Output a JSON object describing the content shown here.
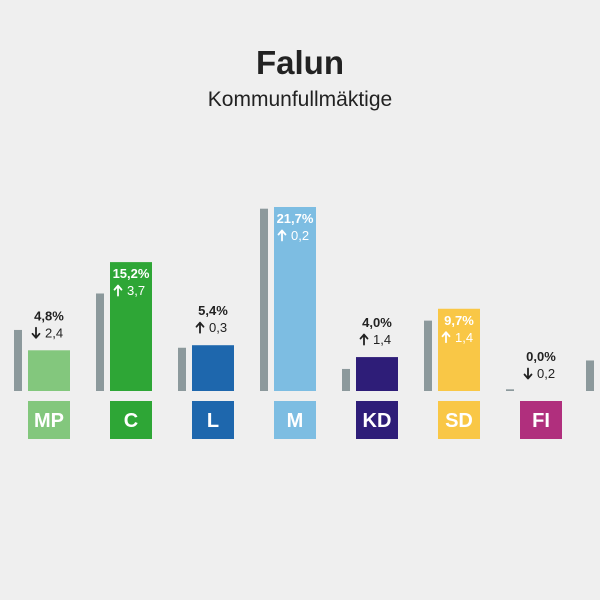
{
  "header": {
    "title": "Falun",
    "subtitle": "Kommunfullmäktige"
  },
  "chart_data": {
    "type": "bar",
    "title": "Falun",
    "subtitle": "Kommunfullmäktige",
    "categories": [
      "MP",
      "C",
      "L",
      "M",
      "KD",
      "SD",
      "FI"
    ],
    "series": [
      {
        "values": [
          4.8,
          15.2,
          5.4,
          21.7,
          4.0,
          9.7,
          0.0
        ]
      },
      {
        "values": [
          7.2,
          11.5,
          5.1,
          21.5,
          2.6,
          8.3,
          0.2
        ]
      }
    ],
    "value_labels": [
      "4,8%",
      "15,2%",
      "5,4%",
      "21,7%",
      "4,0%",
      "9,7%",
      "0,0%"
    ],
    "changes": [
      {
        "dir": "down",
        "text": "2,4"
      },
      {
        "dir": "up",
        "text": "3,7"
      },
      {
        "dir": "up",
        "text": "0,3"
      },
      {
        "dir": "up",
        "text": "0,2"
      },
      {
        "dir": "up",
        "text": "1,4"
      },
      {
        "dir": "up",
        "text": "1,4"
      },
      {
        "dir": "down",
        "text": "0,2"
      }
    ],
    "trailing_previous_value": 3.6,
    "colors": {
      "MP": "#83c77d",
      "C": "#2ea636",
      "L": "#1e67ad",
      "M": "#7dbde2",
      "KD": "#2e1d78",
      "SD": "#f9c746",
      "FI": "#b02f7d",
      "previous": "#8c999c"
    },
    "inside_label_color": "#ffffff",
    "outside_label_color": "#222222"
  }
}
